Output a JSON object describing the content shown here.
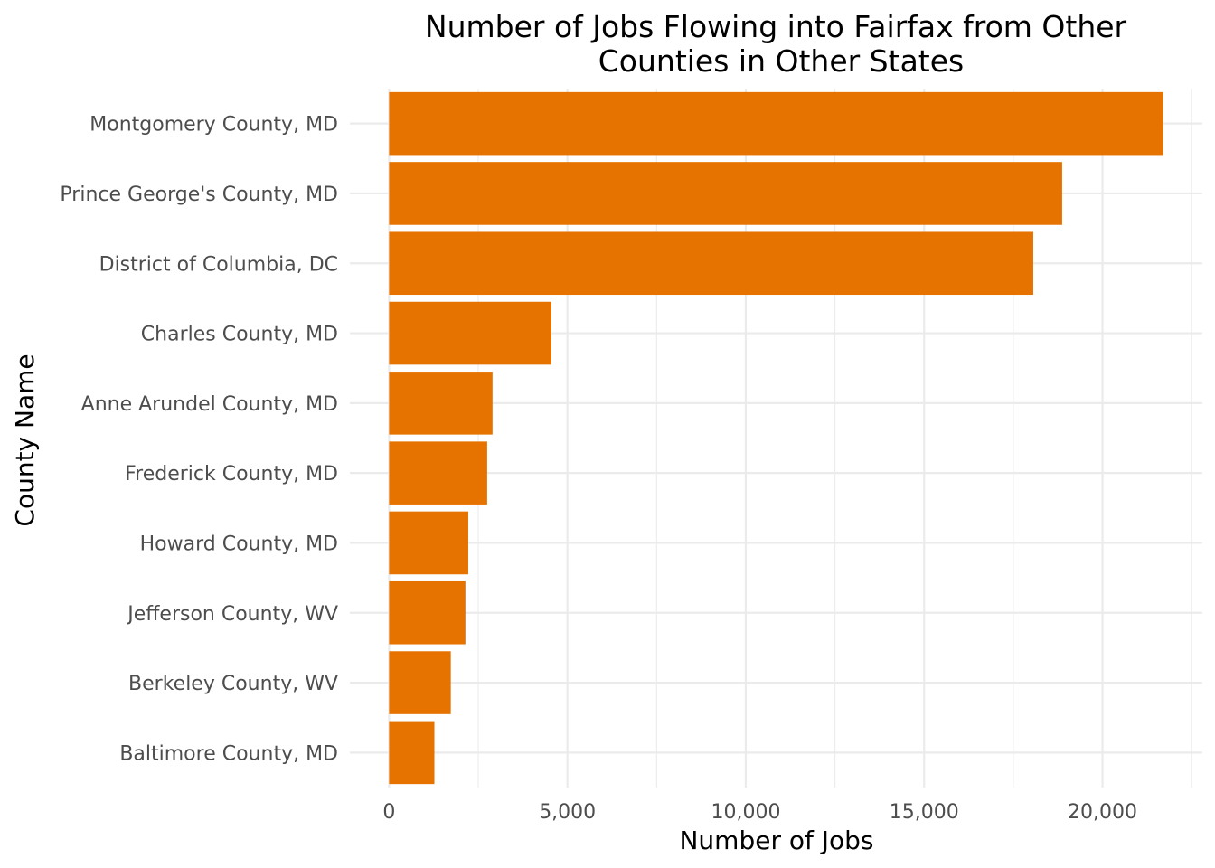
{
  "chart_data": {
    "type": "bar",
    "orientation": "horizontal",
    "title_lines": [
      "Number of Jobs Flowing into Fairfax from Other",
      "Counties in Other States"
    ],
    "xlabel": "Number of Jobs",
    "ylabel": "County Name",
    "categories": [
      "Montgomery County, MD",
      "Prince George's County, MD",
      "District of Columbia, DC",
      "Charles County, MD",
      "Anne Arundel County, MD",
      "Frederick County, MD",
      "Howard County, MD",
      "Jefferson County, WV",
      "Berkeley County, WV",
      "Baltimore County, MD"
    ],
    "values": [
      21700,
      18870,
      18060,
      4550,
      2900,
      2750,
      2220,
      2140,
      1730,
      1270
    ],
    "x_ticks": [
      0,
      5000,
      10000,
      15000,
      20000
    ],
    "x_tick_labels": [
      "0",
      "5,000",
      "10,000",
      "15,000",
      "20,000"
    ],
    "xlim": [
      -1100,
      22800
    ],
    "bar_color": "#E67300",
    "grid": true,
    "legend": "none"
  }
}
